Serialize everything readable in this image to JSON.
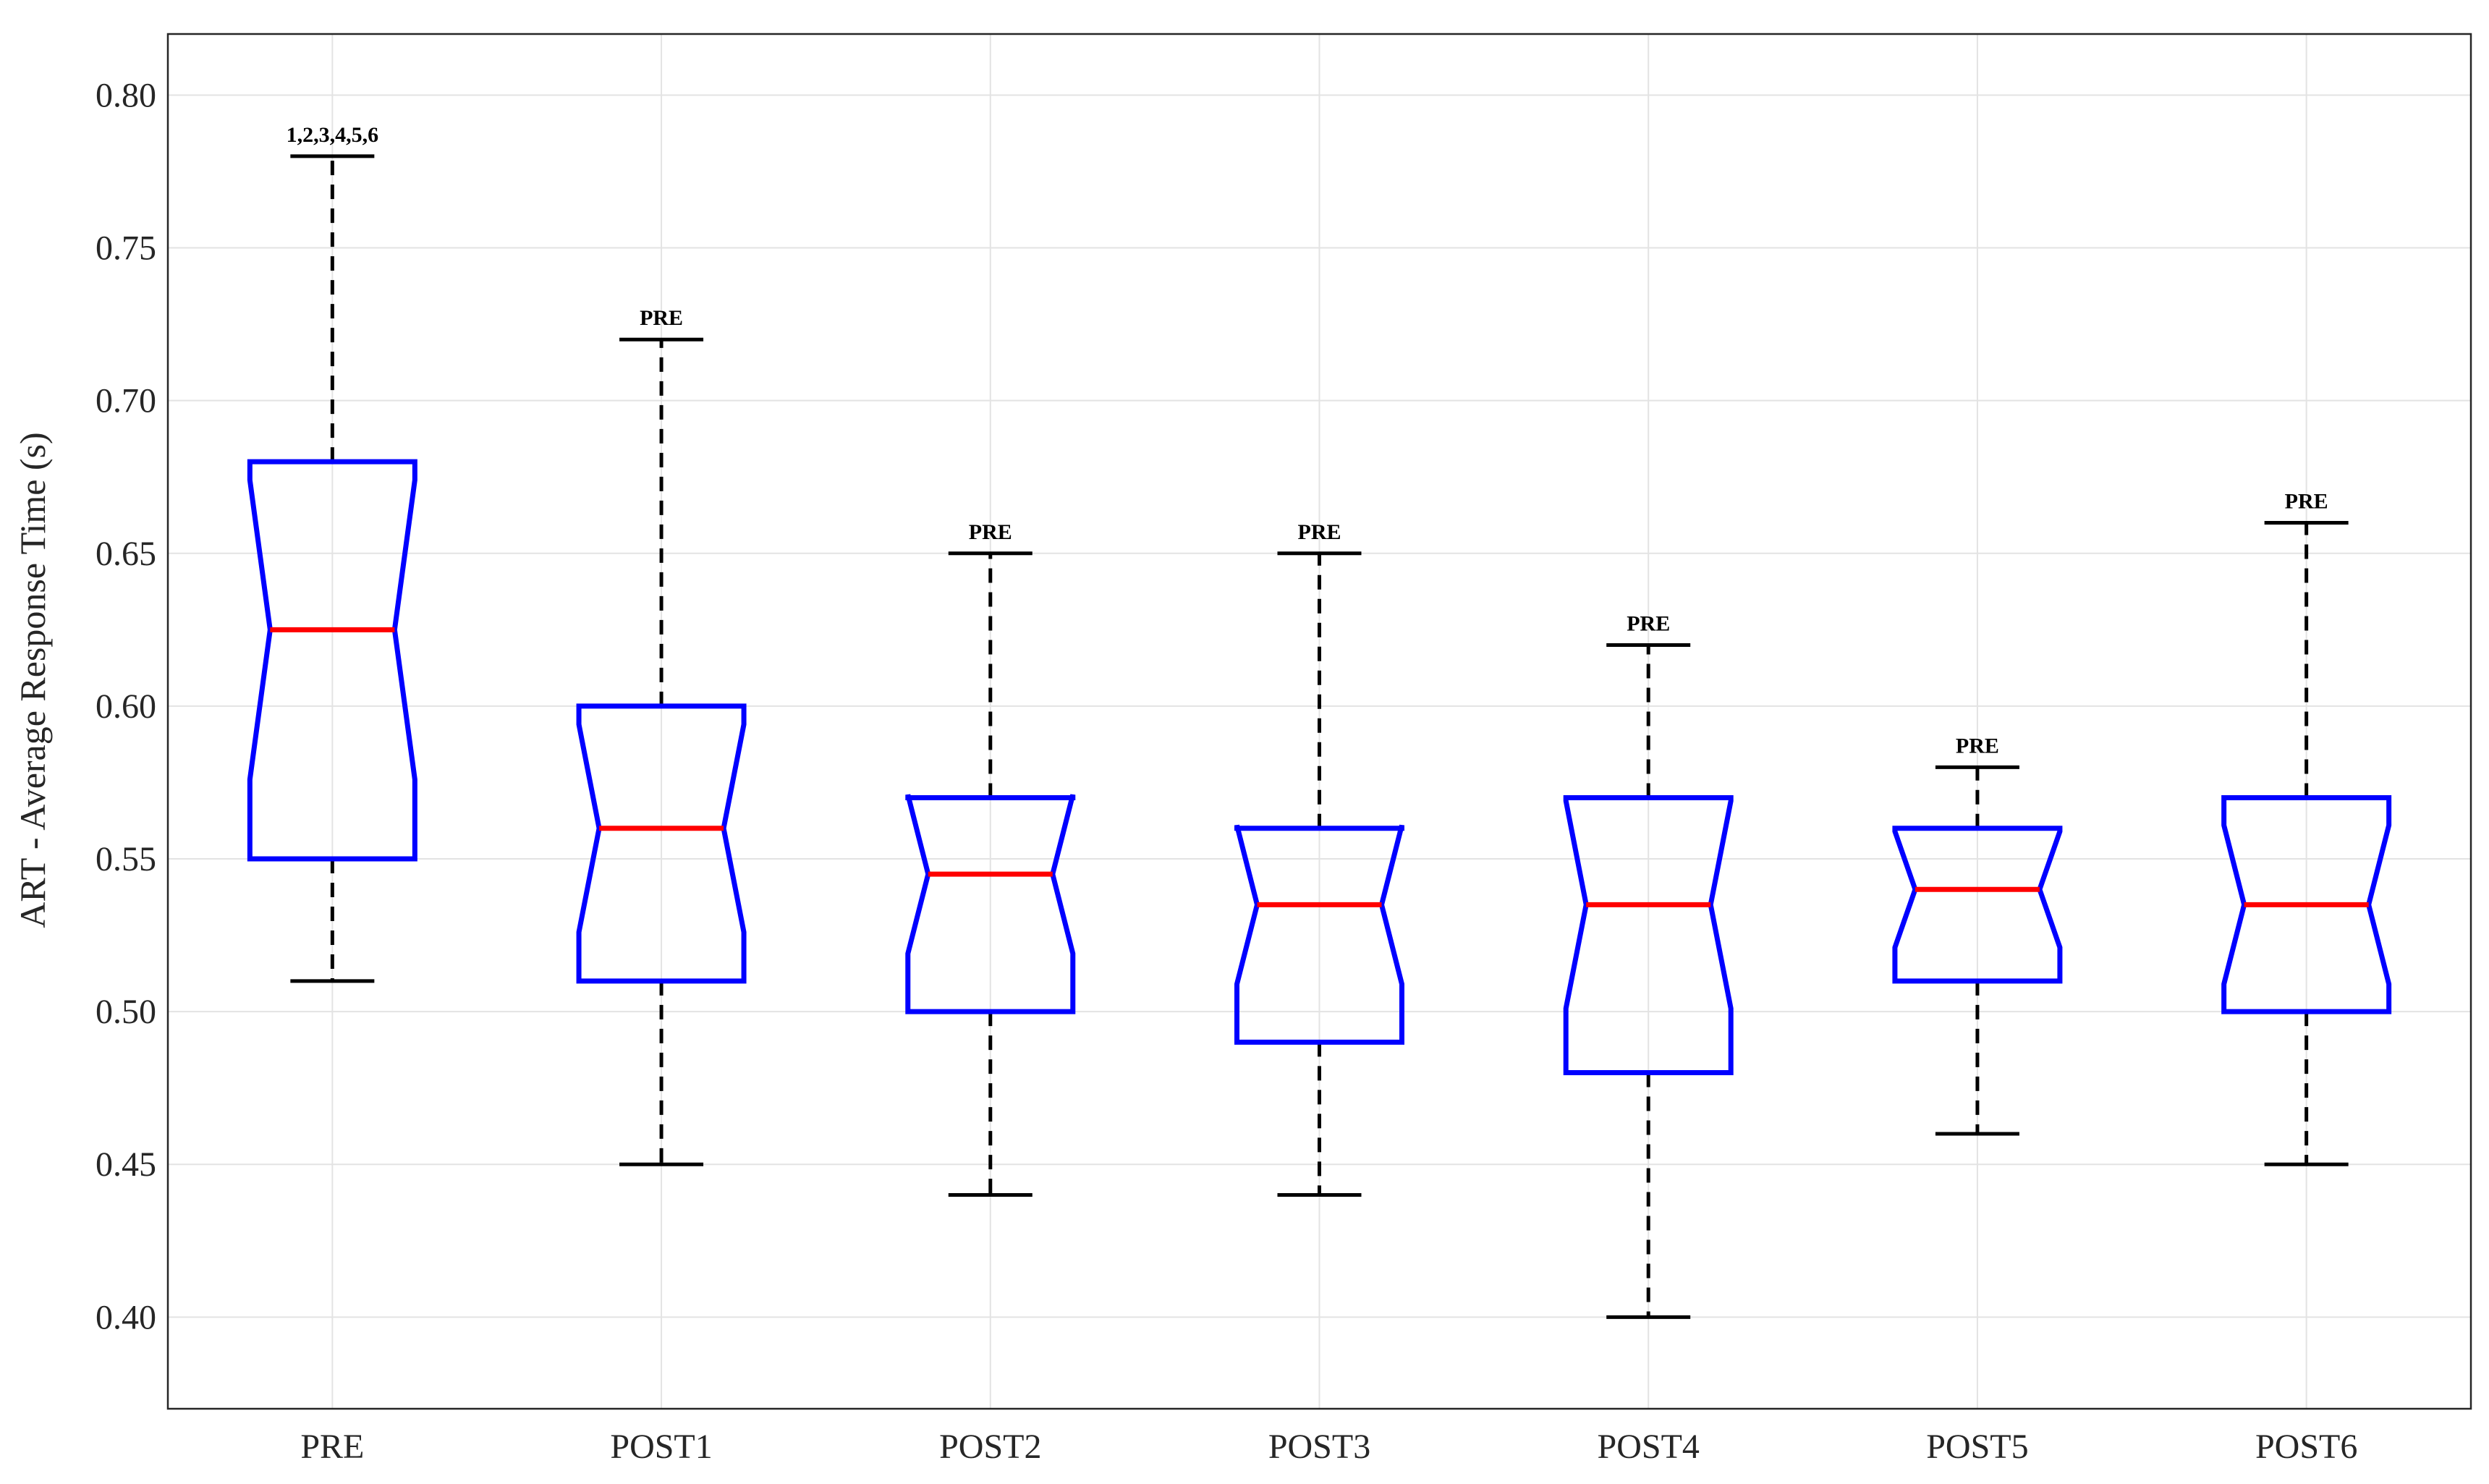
{
  "chart_data": {
    "type": "boxplot",
    "notched": true,
    "categories": [
      "PRE",
      "POST1",
      "POST2",
      "POST3",
      "POST4",
      "POST5",
      "POST6"
    ],
    "boxes": [
      {
        "category": "PRE",
        "whisker_low": 0.51,
        "q1": 0.55,
        "notch_low": 0.576,
        "median": 0.625,
        "notch_high": 0.674,
        "q3": 0.68,
        "whisker_high": 0.78,
        "annotation": "1,2,3,4,5,6"
      },
      {
        "category": "POST1",
        "whisker_low": 0.45,
        "q1": 0.51,
        "notch_low": 0.526,
        "median": 0.56,
        "notch_high": 0.594,
        "q3": 0.6,
        "whisker_high": 0.72,
        "annotation": "PRE"
      },
      {
        "category": "POST2",
        "whisker_low": 0.44,
        "q1": 0.5,
        "notch_low": 0.519,
        "median": 0.545,
        "notch_high": 0.571,
        "q3": 0.57,
        "whisker_high": 0.65,
        "annotation": "PRE"
      },
      {
        "category": "POST3",
        "whisker_low": 0.44,
        "q1": 0.49,
        "notch_low": 0.509,
        "median": 0.535,
        "notch_high": 0.561,
        "q3": 0.56,
        "whisker_high": 0.65,
        "annotation": "PRE"
      },
      {
        "category": "POST4",
        "whisker_low": 0.4,
        "q1": 0.48,
        "notch_low": 0.501,
        "median": 0.535,
        "notch_high": 0.569,
        "q3": 0.57,
        "whisker_high": 0.62,
        "annotation": "PRE"
      },
      {
        "category": "POST5",
        "whisker_low": 0.46,
        "q1": 0.51,
        "notch_low": 0.521,
        "median": 0.54,
        "notch_high": 0.559,
        "q3": 0.56,
        "whisker_high": 0.58,
        "annotation": "PRE"
      },
      {
        "category": "POST6",
        "whisker_low": 0.45,
        "q1": 0.5,
        "notch_low": 0.509,
        "median": 0.535,
        "notch_high": 0.561,
        "q3": 0.57,
        "whisker_high": 0.66,
        "annotation": "PRE"
      }
    ],
    "title": "",
    "xlabel": "",
    "ylabel": "ART - Average Response Time (s)",
    "ylim": [
      0.37,
      0.82
    ],
    "yticks": [
      0.4,
      0.45,
      0.5,
      0.55,
      0.6,
      0.65,
      0.7,
      0.75,
      0.8
    ],
    "ytick_labels": [
      "0.40",
      "0.45",
      "0.50",
      "0.55",
      "0.60",
      "0.65",
      "0.70",
      "0.75",
      "0.80"
    ],
    "grid": true,
    "colors": {
      "box": "#0000ff",
      "median": "#ff0000",
      "whisker": "#000000",
      "grid": "#e3e3e3",
      "frame": "#262626"
    }
  }
}
